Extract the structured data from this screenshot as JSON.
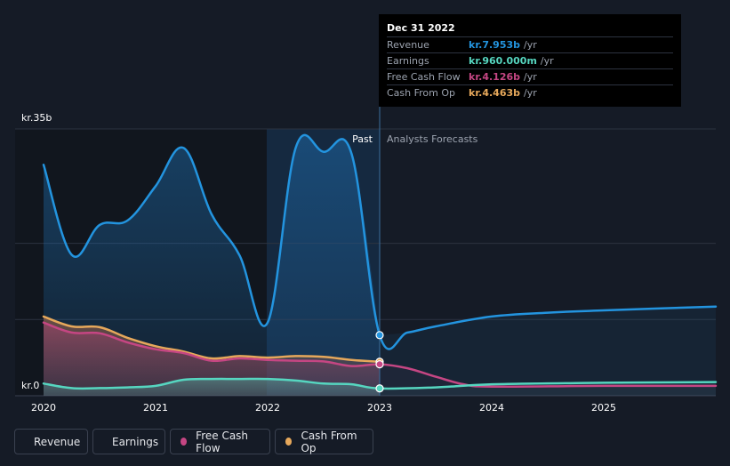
{
  "chart_data": {
    "type": "area",
    "y_top_label": "kr.35b",
    "y_zero_label": "kr.0",
    "ylim": [
      0,
      35
    ],
    "xlim": [
      2020,
      2026
    ],
    "x_ticks": [
      "2020",
      "2021",
      "2022",
      "2023",
      "2024",
      "2025"
    ],
    "x_tick_values": [
      2020,
      2021,
      2022,
      2023,
      2024,
      2025
    ],
    "past_label": "Past",
    "forecast_label": "Analysts Forecasts",
    "past_end": 2023,
    "highlight_range": [
      2022,
      2023
    ],
    "series": [
      {
        "name": "Revenue",
        "color": "#2394df",
        "points": [
          [
            2020,
            30.3
          ],
          [
            2020.25,
            18.5
          ],
          [
            2020.5,
            22.4
          ],
          [
            2020.75,
            23.0
          ],
          [
            2021.0,
            27.5
          ],
          [
            2021.25,
            32.5
          ],
          [
            2021.5,
            23.8
          ],
          [
            2021.75,
            18.4
          ],
          [
            2022.0,
            9.6
          ],
          [
            2022.25,
            32.5
          ],
          [
            2022.5,
            32.0
          ],
          [
            2022.75,
            31.7
          ],
          [
            2023.0,
            7.953
          ],
          [
            2023.25,
            8.3
          ],
          [
            2023.5,
            9.1
          ],
          [
            2024.0,
            10.4
          ],
          [
            2024.5,
            10.9
          ],
          [
            2025.0,
            11.2
          ],
          [
            2026.0,
            11.7
          ]
        ]
      },
      {
        "name": "Earnings",
        "color": "#56d6c0",
        "points": [
          [
            2020,
            1.6
          ],
          [
            2020.25,
            1.0
          ],
          [
            2020.5,
            1.0
          ],
          [
            2020.75,
            1.1
          ],
          [
            2021.0,
            1.3
          ],
          [
            2021.25,
            2.1
          ],
          [
            2021.5,
            2.2
          ],
          [
            2021.75,
            2.2
          ],
          [
            2022.0,
            2.2
          ],
          [
            2022.25,
            2.0
          ],
          [
            2022.5,
            1.6
          ],
          [
            2022.75,
            1.5
          ],
          [
            2023.0,
            0.96
          ],
          [
            2023.5,
            1.1
          ],
          [
            2024.0,
            1.5
          ],
          [
            2025.0,
            1.7
          ],
          [
            2026.0,
            1.8
          ]
        ]
      },
      {
        "name": "Free Cash Flow",
        "color": "#c54683",
        "points": [
          [
            2020,
            9.6
          ],
          [
            2020.25,
            8.3
          ],
          [
            2020.5,
            8.2
          ],
          [
            2020.75,
            7.0
          ],
          [
            2021.0,
            6.1
          ],
          [
            2021.25,
            5.6
          ],
          [
            2021.5,
            4.6
          ],
          [
            2021.75,
            4.9
          ],
          [
            2022.0,
            4.7
          ],
          [
            2022.25,
            4.6
          ],
          [
            2022.5,
            4.5
          ],
          [
            2022.75,
            3.9
          ],
          [
            2023.0,
            4.126
          ],
          [
            2023.25,
            3.6
          ],
          [
            2023.5,
            2.5
          ],
          [
            2023.75,
            1.5
          ],
          [
            2024.0,
            1.2
          ],
          [
            2025.0,
            1.3
          ],
          [
            2026.0,
            1.3
          ]
        ]
      },
      {
        "name": "Cash From Op",
        "color": "#e6a85b",
        "points": [
          [
            2020,
            10.4
          ],
          [
            2020.25,
            9.1
          ],
          [
            2020.5,
            9.0
          ],
          [
            2020.75,
            7.6
          ],
          [
            2021.0,
            6.5
          ],
          [
            2021.25,
            5.8
          ],
          [
            2021.5,
            4.9
          ],
          [
            2021.75,
            5.2
          ],
          [
            2022.0,
            5.0
          ],
          [
            2022.25,
            5.2
          ],
          [
            2022.5,
            5.1
          ],
          [
            2022.75,
            4.7
          ],
          [
            2023.0,
            4.463
          ]
        ]
      }
    ]
  },
  "tooltip": {
    "date": "Dec 31 2022",
    "rows": [
      {
        "name": "Revenue",
        "value": "kr.7.953b",
        "unit": "/yr",
        "color": "#2394df"
      },
      {
        "name": "Earnings",
        "value": "kr.960.000m",
        "unit": "/yr",
        "color": "#56d6c0"
      },
      {
        "name": "Free Cash Flow",
        "value": "kr.4.126b",
        "unit": "/yr",
        "color": "#c54683"
      },
      {
        "name": "Cash From Op",
        "value": "kr.4.463b",
        "unit": "/yr",
        "color": "#e6a85b"
      }
    ]
  },
  "legend": [
    {
      "label": "Revenue",
      "color": "#2394df"
    },
    {
      "label": "Earnings",
      "color": "#56d6c0"
    },
    {
      "label": "Free Cash Flow",
      "color": "#c54683"
    },
    {
      "label": "Cash From Op",
      "color": "#e6a85b"
    }
  ]
}
